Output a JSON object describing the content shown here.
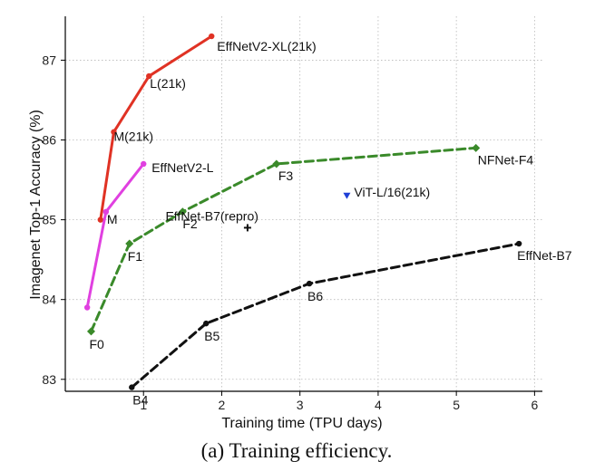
{
  "chart_data": {
    "type": "line",
    "title": "",
    "xlabel": "Training time (TPU days)",
    "ylabel": "Imagenet Top-1 Accuracy (%)",
    "caption": "(a) Training efficiency.",
    "xlim": [
      0.0,
      6.1
    ],
    "ylim": [
      82.85,
      87.55
    ],
    "xticks": [
      1,
      2,
      3,
      4,
      5,
      6
    ],
    "yticks": [
      83,
      84,
      85,
      86,
      87
    ],
    "grid": true,
    "series": [
      {
        "color": "#e03224",
        "line_style": "solid",
        "marker": "circle",
        "points": [
          {
            "x": 0.45,
            "y": 85.0,
            "label": ""
          },
          {
            "x": 0.62,
            "y": 86.1,
            "label": "M(21k)"
          },
          {
            "x": 1.07,
            "y": 86.8,
            "label": "L(21k)"
          },
          {
            "x": 1.87,
            "y": 87.3,
            "label": "EffNetV2-XL(21k)"
          }
        ]
      },
      {
        "color": "#e040e0",
        "line_style": "solid",
        "marker": "circle",
        "points": [
          {
            "x": 0.28,
            "y": 83.9,
            "label": ""
          },
          {
            "x": 0.52,
            "y": 85.1,
            "label": "M"
          },
          {
            "x": 1.0,
            "y": 85.7,
            "label": "EffNetV2-L"
          }
        ]
      },
      {
        "color": "#3a8a2a",
        "line_style": "dashed",
        "marker": "diamond",
        "points": [
          {
            "x": 0.33,
            "y": 83.6,
            "label": "F0"
          },
          {
            "x": 0.82,
            "y": 84.7,
            "label": "F1"
          },
          {
            "x": 1.5,
            "y": 85.1,
            "label": "F2"
          },
          {
            "x": 2.7,
            "y": 85.7,
            "label": "F3"
          },
          {
            "x": 5.25,
            "y": 85.9,
            "label": "NFNet-F4"
          }
        ]
      },
      {
        "color": "#111111",
        "line_style": "dashed",
        "marker": "circle",
        "points": [
          {
            "x": 0.85,
            "y": 82.9,
            "label": "B4"
          },
          {
            "x": 1.8,
            "y": 83.7,
            "label": "B5"
          },
          {
            "x": 3.12,
            "y": 84.2,
            "label": "B6"
          },
          {
            "x": 5.8,
            "y": 84.7,
            "label": "EffNet-B7"
          }
        ]
      }
    ],
    "standalone_points": [
      {
        "x": 2.33,
        "y": 84.9,
        "label": "EffNet-B7(repro)",
        "marker": "plus",
        "color": "#111111"
      },
      {
        "x": 3.6,
        "y": 85.3,
        "label": "ViT-L/16(21k)",
        "marker": "triangle-down",
        "color": "#1f3fd6"
      }
    ]
  }
}
